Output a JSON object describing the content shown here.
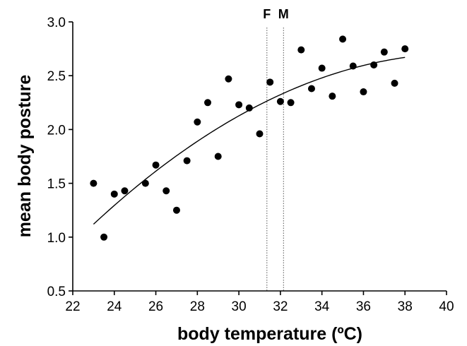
{
  "chart_data": {
    "type": "scatter",
    "title": "",
    "xlabel": "body temperature (ºC)",
    "ylabel": "mean body posture",
    "xlim": [
      22,
      40
    ],
    "ylim": [
      0.5,
      3.0
    ],
    "xticks": [
      22,
      24,
      26,
      28,
      30,
      32,
      34,
      36,
      38,
      40
    ],
    "yticks": [
      0.5,
      1.0,
      1.5,
      2.0,
      2.5,
      3.0
    ],
    "xtick_labels": [
      "22",
      "24",
      "26",
      "28",
      "30",
      "32",
      "34",
      "36",
      "38",
      "40"
    ],
    "ytick_labels": [
      "0.5",
      "1.0",
      "1.5",
      "2.0",
      "2.5",
      "3.0"
    ],
    "grid": false,
    "reference_lines": [
      {
        "label": "F",
        "x": 31.35
      },
      {
        "label": "M",
        "x": 32.15
      }
    ],
    "points": [
      [
        23.0,
        1.5
      ],
      [
        23.5,
        1.0
      ],
      [
        24.0,
        1.4
      ],
      [
        24.5,
        1.43
      ],
      [
        25.5,
        1.5
      ],
      [
        26.0,
        1.67
      ],
      [
        26.5,
        1.43
      ],
      [
        27.0,
        1.25
      ],
      [
        27.5,
        1.71
      ],
      [
        28.0,
        2.07
      ],
      [
        28.5,
        2.25
      ],
      [
        29.0,
        1.75
      ],
      [
        29.5,
        2.47
      ],
      [
        30.0,
        2.23
      ],
      [
        30.5,
        2.2
      ],
      [
        31.0,
        1.96
      ],
      [
        31.5,
        2.44
      ],
      [
        32.0,
        2.26
      ],
      [
        32.5,
        2.25
      ],
      [
        33.0,
        2.74
      ],
      [
        33.5,
        2.38
      ],
      [
        34.0,
        2.57
      ],
      [
        34.5,
        2.31
      ],
      [
        35.0,
        2.84
      ],
      [
        35.5,
        2.59
      ],
      [
        36.0,
        2.35
      ],
      [
        36.5,
        2.6
      ],
      [
        37.0,
        2.72
      ],
      [
        37.5,
        2.43
      ],
      [
        38.0,
        2.75
      ]
    ],
    "trend": {
      "type": "quadratic",
      "x_range": [
        23.0,
        38.0
      ],
      "points": [
        [
          23.0,
          1.12
        ],
        [
          30.5,
          2.18
        ],
        [
          38.0,
          2.67
        ]
      ]
    }
  }
}
